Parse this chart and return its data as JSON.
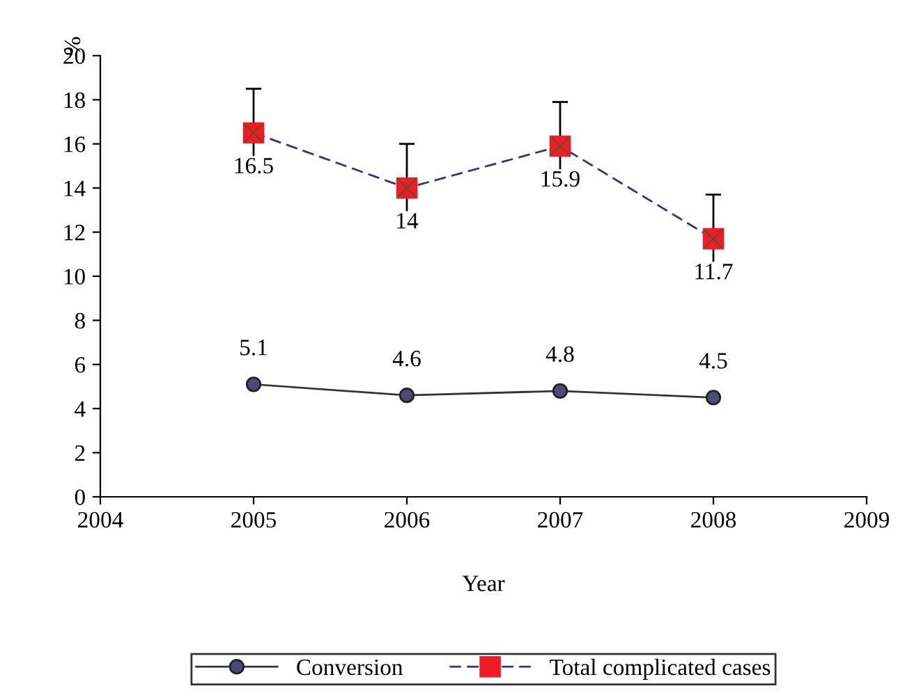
{
  "chart_data": {
    "type": "line",
    "xlabel": "Year",
    "ylabel": "%",
    "x": [
      2005,
      2006,
      2007,
      2008
    ],
    "series": [
      {
        "name": "Conversion",
        "color": "#333333",
        "colors": [
          "#4b4a78",
          "#4b4a78",
          "#4b4a78",
          "#4b4a78"
        ],
        "values": [
          5.1,
          4.6,
          4.8,
          4.5
        ],
        "marker": "circle",
        "line_style": "solid"
      },
      {
        "name": "Total complicated cases",
        "color": "#2e3192",
        "colors": [
          "#ee1c25",
          "#ee1c25",
          "#ee1c25",
          "#ee1c25"
        ],
        "values": [
          16.5,
          14,
          15.9,
          11.7
        ],
        "marker": "square",
        "line_style": "dashed",
        "errors": [
          2,
          2,
          2,
          2
        ]
      }
    ],
    "xlim": [
      2004,
      2009
    ],
    "xticks": [
      2004,
      2005,
      2006,
      2007,
      2008,
      2009
    ],
    "ylim": [
      0,
      20
    ],
    "yticks": [
      0,
      2,
      4,
      6,
      8,
      10,
      12,
      14,
      16,
      18,
      20
    ],
    "data_labels": true,
    "grid": false,
    "legend": "bottom"
  }
}
